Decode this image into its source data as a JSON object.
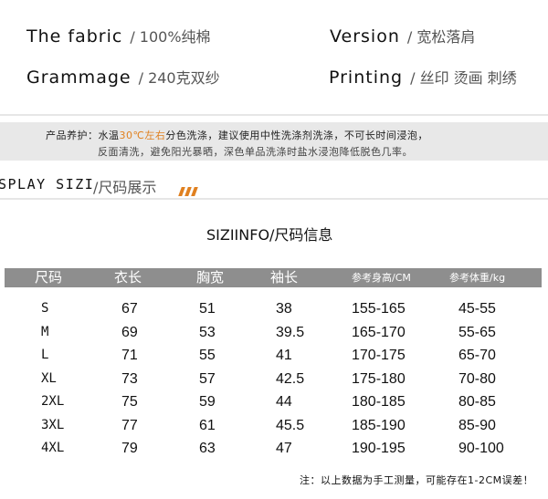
{
  "specs": [
    {
      "label": "The fabric",
      "value": "/ 100%纯棉"
    },
    {
      "label": "Version",
      "value": "/ 宽松落肩"
    },
    {
      "label": "Grammage",
      "value": "/ 240克双纱"
    },
    {
      "label": "Printing",
      "value": "/ 丝印 烫画 刺绣"
    }
  ],
  "care": {
    "prefix": "产品养护：水温",
    "highlight": "30℃左右",
    "rest": "分色洗涤，建议使用中性洗涤剂洗涤，不可长时间浸泡，",
    "line2": "反面清洗，避免阳光暴晒，深色单品洗涤时盐水浸泡降低脱色几率。",
    "accent_color": "#e0801f"
  },
  "section": {
    "en": "SPLAY SIZI",
    "cn": "/尺码展示"
  },
  "size_table": {
    "title": "SIZIINFO/尺码信息",
    "headers": [
      "尺码",
      "衣长",
      "胸宽",
      "袖长",
      "参考身高/CM",
      "参考体重/kg"
    ],
    "rows": [
      [
        "S",
        "67",
        "51",
        "38",
        "155-165",
        "45-55"
      ],
      [
        "M",
        "69",
        "53",
        "39.5",
        "165-170",
        "55-65"
      ],
      [
        "L",
        "71",
        "55",
        "41",
        "170-175",
        "65-70"
      ],
      [
        "XL",
        "73",
        "57",
        "42.5",
        "175-180",
        "70-80"
      ],
      [
        "2XL",
        "75",
        "59",
        "44",
        "180-185",
        "80-85"
      ],
      [
        "3XL",
        "77",
        "61",
        "45.5",
        "185-190",
        "85-90"
      ],
      [
        "4XL",
        "79",
        "63",
        "47",
        "190-195",
        "90-100"
      ]
    ],
    "note": "注：以上数据为手工测量，可能存在1-2CM误差！"
  }
}
